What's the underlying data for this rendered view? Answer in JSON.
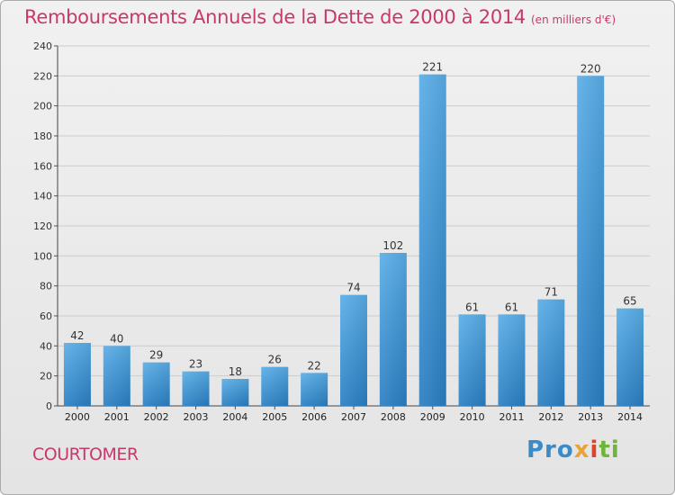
{
  "header": {
    "title": "Remboursements Annuels de la Dette de 2000 à 2014",
    "unit": "(en milliers d'€)"
  },
  "footer": {
    "commune": "COURTOMER",
    "logo_parts": [
      "Pro",
      "x",
      "i",
      "ti"
    ]
  },
  "colors": {
    "title": "#c8386c",
    "bar_light": "#5aaee8",
    "bar_dark": "#2a7fc3",
    "grid": "#cccccc"
  },
  "chart_data": {
    "type": "bar",
    "title": "Remboursements Annuels de la Dette de 2000 à 2014",
    "ylabel": "",
    "xlabel": "",
    "categories": [
      "2000",
      "2001",
      "2002",
      "2003",
      "2004",
      "2005",
      "2006",
      "2007",
      "2008",
      "2009",
      "2010",
      "2011",
      "2012",
      "2013",
      "2014"
    ],
    "values": [
      42,
      40,
      29,
      23,
      18,
      26,
      22,
      74,
      102,
      221,
      61,
      61,
      71,
      220,
      65
    ],
    "ylim": [
      0,
      240
    ],
    "yticks": [
      0,
      20,
      40,
      60,
      80,
      100,
      120,
      140,
      160,
      180,
      200,
      220,
      240
    ],
    "grid": true,
    "data_labels": true
  }
}
